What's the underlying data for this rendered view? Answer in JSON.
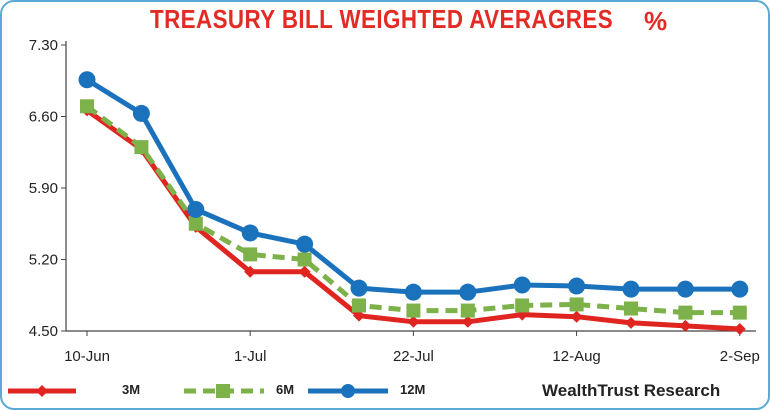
{
  "title": "TREASURY BILL WEIGHTED AVERAGRES",
  "unit": "%",
  "source": "WealthTrust Research",
  "colors": {
    "3M": "#e02420",
    "6M": "#7db14a",
    "12M": "#1a72bd",
    "title": "#e32b25"
  },
  "chart_data": {
    "type": "line",
    "title": "TREASURY BILL WEIGHTED AVERAGRES",
    "x": [
      "10-Jun",
      "17-Jun",
      "24-Jun",
      "1-Jul",
      "8-Jul",
      "15-Jul",
      "22-Jul",
      "29-Jul",
      "5-Aug",
      "12-Aug",
      "19-Aug",
      "26-Aug",
      "2-Sep"
    ],
    "x_tick_labels": [
      "10-Jun",
      "1-Jul",
      "22-Jul",
      "12-Aug",
      "2-Sep"
    ],
    "y_ticks": [
      "4.50",
      "5.20",
      "5.90",
      "6.60",
      "7.30"
    ],
    "ylim": [
      4.5,
      7.3
    ],
    "legend_position": "bottom-left",
    "grid": false,
    "series": [
      {
        "name": "3M",
        "style": "solid-line-diamond-markers",
        "values": [
          6.66,
          6.28,
          5.52,
          5.08,
          5.08,
          4.65,
          4.59,
          4.59,
          4.66,
          4.64,
          4.58,
          4.55,
          4.52
        ]
      },
      {
        "name": "6M",
        "style": "dashed-line-square-markers",
        "values": [
          6.7,
          6.3,
          5.55,
          5.25,
          5.2,
          4.75,
          4.7,
          4.7,
          4.75,
          4.76,
          4.72,
          4.68,
          4.68
        ]
      },
      {
        "name": "12M",
        "style": "solid-line-circle-markers",
        "values": [
          6.96,
          6.63,
          5.69,
          5.46,
          5.35,
          4.92,
          4.88,
          4.88,
          4.95,
          4.94,
          4.91,
          4.91,
          4.91
        ]
      }
    ]
  }
}
